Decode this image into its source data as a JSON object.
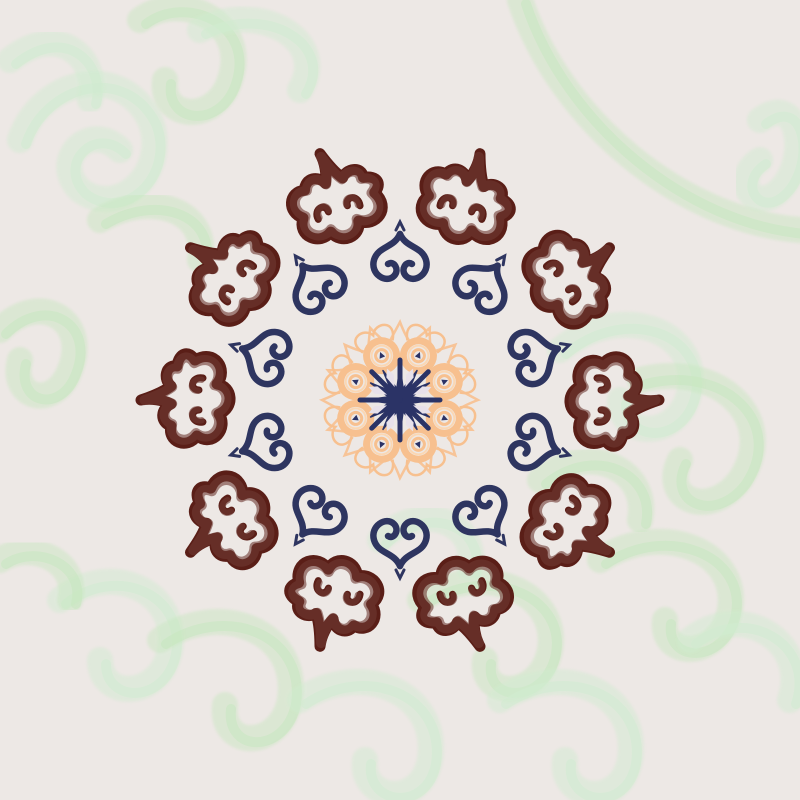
{
  "colors": {
    "background": "#EDE8E5",
    "green_swirl_a": "#A8E6A0",
    "green_swirl_b": "#B9EFC0",
    "outer_ring": "#5A1E17",
    "outer_ring_highlight": "#6E3A33",
    "middle_ring": "#2E3560",
    "center_outer": "#F7C08F",
    "center_inner": "#FBD7B3",
    "center_core": "#2B3366"
  },
  "pattern": {
    "type": "radial-mandala",
    "rings": [
      {
        "name": "outer-ring",
        "motif": "cloud-scroll-icon",
        "count": 10
      },
      {
        "name": "middle-ring",
        "motif": "scroll-curl-icon",
        "count": 10
      },
      {
        "name": "center-ring",
        "motif": "ring-flower-icon",
        "count": 8
      },
      {
        "name": "core",
        "motif": "star-icon",
        "count": 1
      }
    ]
  }
}
